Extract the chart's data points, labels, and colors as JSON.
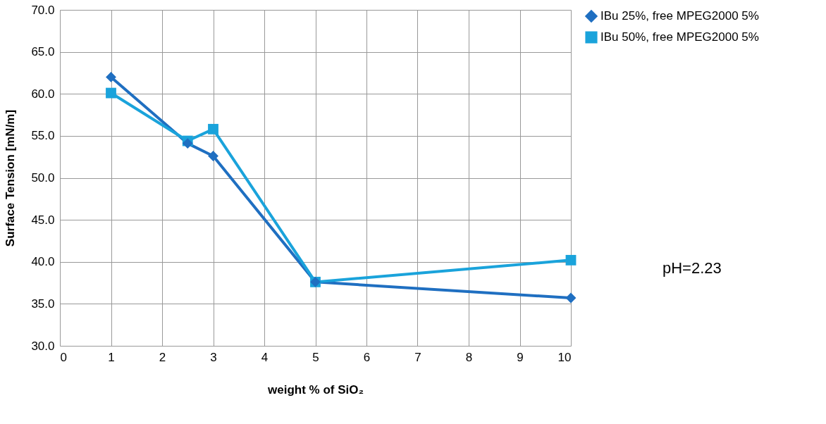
{
  "chart_data": {
    "type": "line",
    "xlabel": "weight % of SiO₂",
    "ylabel": "Surface Tension [mN/m]",
    "xlim": [
      0,
      10
    ],
    "xticks": [
      0,
      1,
      2,
      3,
      4,
      5,
      6,
      7,
      8,
      9,
      10
    ],
    "ylim": [
      30,
      70
    ],
    "yticks": [
      {
        "value": 30,
        "label": "30.0"
      },
      {
        "value": 35,
        "label": "35.0"
      },
      {
        "value": 40,
        "label": "40.0"
      },
      {
        "value": 45,
        "label": "45.0"
      },
      {
        "value": 50,
        "label": "50.0"
      },
      {
        "value": 55,
        "label": "55.0"
      },
      {
        "value": 60,
        "label": "60.0"
      },
      {
        "value": 65,
        "label": "65.0"
      },
      {
        "value": 70,
        "label": "70.0"
      }
    ],
    "x": [
      1,
      2.5,
      3,
      5,
      10
    ],
    "series": [
      {
        "name": "IBu 25%, free MPEG2000 5%",
        "color": "#1f6fc1",
        "marker": "diamond",
        "values": [
          62.0,
          54.1,
          52.6,
          37.6,
          35.7
        ]
      },
      {
        "name": "IBu 50%, free MPEG2000 5%",
        "color": "#1aa3db",
        "marker": "square",
        "values": [
          60.1,
          54.4,
          55.8,
          37.6,
          40.2
        ]
      }
    ],
    "annotations": [
      "pH=2.23"
    ],
    "grid": true,
    "legend": "right",
    "line_style": "solid"
  }
}
